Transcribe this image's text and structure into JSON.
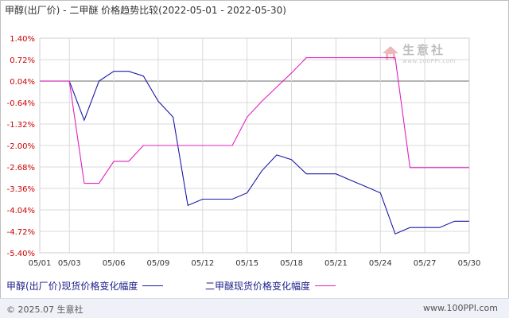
{
  "title": "甲醇(出厂价) - 二甲醚 价格趋势比较(2022-05-01 - 2022-05-30)",
  "watermark": {
    "name": "生意社",
    "url": "www.100PPI.com"
  },
  "footer": {
    "copyright": "© 2025.07 生意社",
    "site": "www.100PPI.com"
  },
  "colors": {
    "series1": "#1a1aa6",
    "series2": "#e020c0",
    "zero_line": "#888888",
    "grid": "#d9d9d9",
    "ytick": "#cc0000"
  },
  "chart_data": {
    "type": "line",
    "title": "甲醇(出厂价) - 二甲醚 价格趋势比较(2022-05-01 - 2022-05-30)",
    "xlabel": "",
    "ylabel": "",
    "ylim": [
      -5.4,
      1.4
    ],
    "x_tick_labels": [
      "05/01",
      "05/03",
      "05/06",
      "05/09",
      "05/12",
      "05/15",
      "05/18",
      "05/21",
      "05/24",
      "05/27",
      "05/30"
    ],
    "y_tick_labels": [
      "1.40%",
      "0.72%",
      "0.04%",
      "-0.64%",
      "-1.32%",
      "-2.00%",
      "-2.68%",
      "-3.36%",
      "-4.04%",
      "-4.72%",
      "-5.40%"
    ],
    "grid": true,
    "legend_position": "bottom",
    "series": [
      {
        "name": "甲醇(出厂价)现货价格变化幅度",
        "x": [
          "05/01",
          "05/02",
          "05/03",
          "05/04",
          "05/05",
          "05/06",
          "05/07",
          "05/08",
          "05/09",
          "05/10",
          "05/11",
          "05/12",
          "05/13",
          "05/14",
          "05/15",
          "05/16",
          "05/17",
          "05/18",
          "05/19",
          "05/20",
          "05/21",
          "05/22",
          "05/23",
          "05/24",
          "05/25",
          "05/26",
          "05/27",
          "05/28",
          "05/29",
          "05/30"
        ],
        "values": [
          0.04,
          0.04,
          0.04,
          -1.2,
          0.04,
          0.35,
          0.35,
          0.2,
          -0.6,
          -1.1,
          -3.9,
          -3.7,
          -3.7,
          -3.7,
          -3.5,
          -2.8,
          -2.3,
          -2.45,
          -2.9,
          -2.9,
          -2.9,
          -3.1,
          -3.3,
          -3.5,
          -4.8,
          -4.6,
          -4.6,
          -4.6,
          -4.4,
          -4.4
        ]
      },
      {
        "name": "二甲醚现货价格变化幅度",
        "x": [
          "05/01",
          "05/02",
          "05/03",
          "05/04",
          "05/05",
          "05/06",
          "05/07",
          "05/08",
          "05/09",
          "05/10",
          "05/11",
          "05/12",
          "05/13",
          "05/14",
          "05/15",
          "05/16",
          "05/17",
          "05/18",
          "05/19",
          "05/20",
          "05/21",
          "05/22",
          "05/23",
          "05/24",
          "05/25",
          "05/26",
          "05/27",
          "05/28",
          "05/29",
          "05/30"
        ],
        "values": [
          0.04,
          0.04,
          0.04,
          -3.2,
          -3.2,
          -2.5,
          -2.5,
          -2.0,
          -2.0,
          -2.0,
          -2.0,
          -2.0,
          -2.0,
          -2.0,
          -1.1,
          -0.6,
          -0.15,
          0.3,
          0.78,
          0.78,
          0.78,
          0.78,
          0.78,
          0.78,
          0.78,
          -2.7,
          -2.7,
          -2.7,
          -2.7,
          -2.7
        ]
      }
    ]
  }
}
